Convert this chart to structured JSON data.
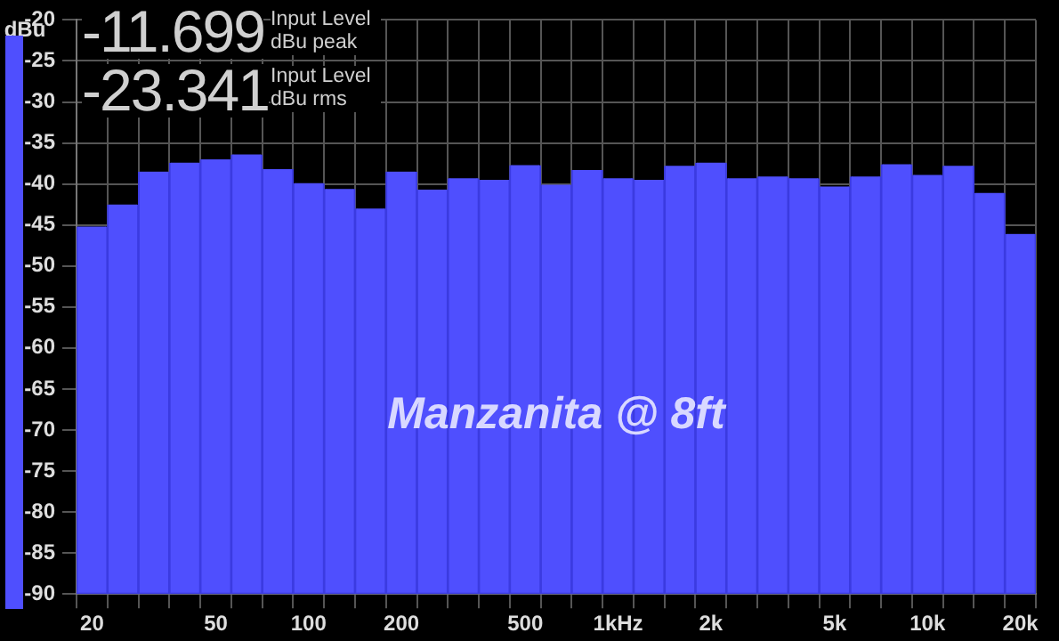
{
  "chart_data": {
    "type": "bar",
    "title": "Manzanita @ 8ft",
    "ylabel": "dBu",
    "annotations": [
      "-11.699",
      "Input Level dBu peak",
      "-23.341",
      "Input Level dBu rms"
    ],
    "categories": [
      "20",
      null,
      null,
      null,
      "50",
      null,
      null,
      "100",
      null,
      null,
      "200",
      null,
      null,
      null,
      "500",
      null,
      null,
      "1kHz",
      null,
      null,
      "2k",
      null,
      null,
      null,
      "5k",
      null,
      null,
      "10k",
      null,
      null,
      "20k"
    ],
    "base": [
      -90,
      -90,
      -90,
      -90,
      -90,
      -90,
      -90,
      -90,
      -90,
      -90,
      -90,
      -90,
      -90,
      -90,
      -90,
      -90,
      -90,
      -90,
      -90,
      -90,
      -90,
      -90,
      -90,
      -90,
      -90,
      -90,
      -90,
      -90,
      -90,
      -90,
      -90
    ],
    "values": [
      44.8,
      47.5,
      51.5,
      52.6,
      53.0,
      53.6,
      51.8,
      50.1,
      49.4,
      47.0,
      51.5,
      49.3,
      50.7,
      50.5,
      52.3,
      49.9,
      51.7,
      50.7,
      50.5,
      52.2,
      52.6,
      50.7,
      50.9,
      50.7,
      49.7,
      50.9,
      52.4,
      51.1,
      52.2,
      48.9,
      43.9
    ],
    "color": "#4f4ffe",
    "ylim": [
      -90,
      -20
    ],
    "yticks": [
      -90,
      -85,
      -80,
      -75,
      -70,
      -65,
      -60,
      -55,
      -50,
      -45,
      -40,
      -35,
      -30,
      -25,
      -20
    ],
    "grid": true,
    "legend": false
  }
}
